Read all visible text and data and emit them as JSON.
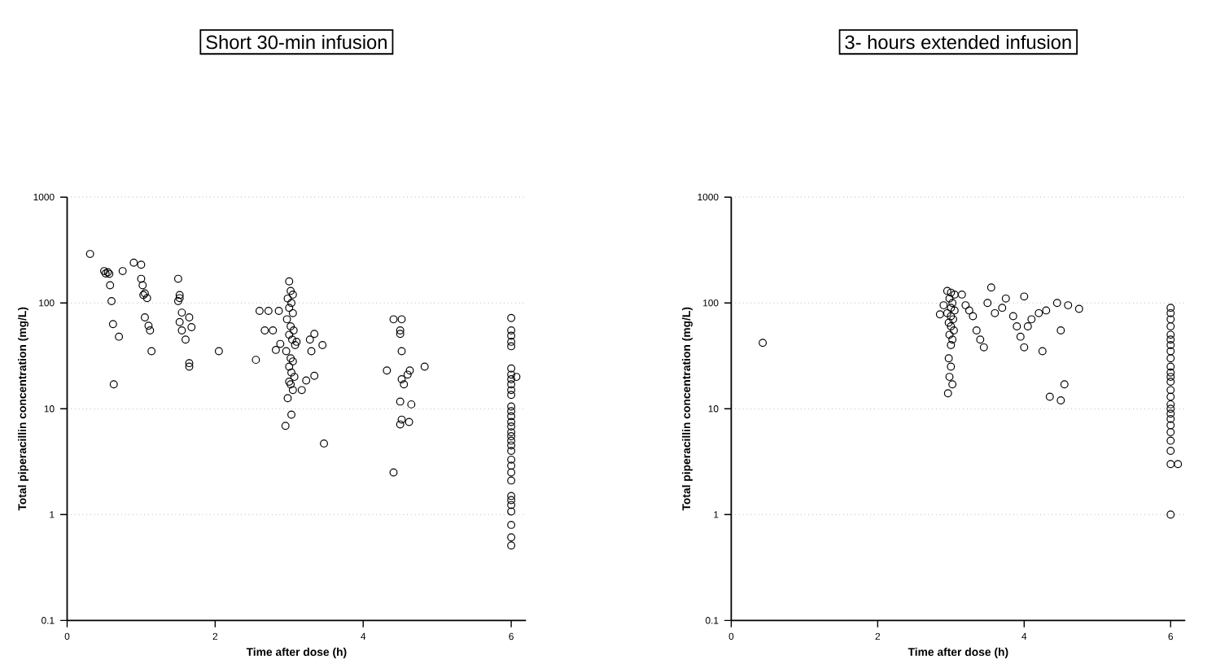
{
  "chart_data": [
    {
      "type": "scatter",
      "title": "Short 30-min infusion",
      "xlabel": "Time after dose (h)",
      "ylabel": "Total piperacillin concentration (mg/L)",
      "log": "y",
      "grid": "y",
      "marker": "circle",
      "color": "#000000",
      "xlim": [
        0,
        6.2
      ],
      "ylim": [
        0.1,
        1000
      ],
      "xticks": [
        0,
        2,
        4,
        6
      ],
      "yticks": [
        0.1,
        1,
        10,
        100,
        1000
      ],
      "x": [
        0.31,
        0.5,
        0.52,
        0.55,
        0.57,
        0.58,
        0.6,
        0.62,
        0.7,
        0.63,
        0.75,
        0.9,
        1.0,
        1.0,
        1.02,
        1.05,
        1.03,
        1.08,
        1.05,
        1.1,
        1.12,
        1.14,
        1.5,
        1.52,
        1.52,
        1.5,
        1.55,
        1.65,
        1.52,
        1.68,
        1.55,
        1.6,
        1.65,
        1.65,
        2.05,
        2.55,
        2.6,
        2.72,
        2.67,
        2.78,
        2.86,
        2.82,
        2.88,
        3.0,
        3.02,
        3.05,
        2.98,
        3.03,
        3.0,
        3.05,
        2.97,
        3.02,
        3.06,
        3.0,
        3.04,
        3.08,
        2.96,
        3.02,
        3.05,
        3.0,
        3.03,
        3.07,
        3.0,
        3.02,
        3.05,
        2.98,
        3.03,
        2.95,
        3.1,
        3.23,
        3.17,
        3.3,
        3.34,
        3.28,
        3.34,
        3.45,
        3.47,
        4.41,
        4.52,
        4.5,
        4.5,
        4.52,
        4.32,
        4.52,
        4.55,
        4.63,
        4.6,
        4.83,
        4.5,
        4.65,
        4.52,
        4.5,
        4.62,
        4.41,
        6,
        6,
        6,
        6,
        6,
        6,
        6,
        6,
        6,
        6,
        6,
        6,
        6,
        6,
        6,
        6,
        6,
        6,
        6,
        6,
        6,
        6,
        6,
        6,
        6,
        6,
        6,
        6,
        6,
        6,
        6,
        6,
        6.07
      ],
      "values": [
        290,
        200,
        190,
        195,
        188,
        147,
        104,
        63,
        48,
        17,
        200,
        240,
        230,
        169,
        147,
        123,
        119,
        111,
        73,
        61,
        55,
        35,
        169,
        119,
        111,
        104,
        81,
        73,
        66,
        59,
        55,
        45,
        27,
        25,
        35,
        29,
        84,
        84,
        55,
        55,
        84,
        36,
        41,
        160,
        130,
        120,
        110,
        100,
        90,
        80,
        70,
        60,
        55,
        50,
        45,
        40,
        35,
        30,
        28,
        25,
        22,
        20,
        18,
        17,
        15,
        12.6,
        8.8,
        6.9,
        43,
        18.5,
        15,
        35,
        51,
        45,
        20.5,
        40,
        4.7,
        70,
        70,
        55,
        51,
        35,
        23,
        19,
        17,
        23,
        21,
        25,
        11.7,
        11,
        7.9,
        7.1,
        7.5,
        2.5,
        72,
        55,
        49,
        43,
        39,
        24,
        21,
        19,
        17,
        15,
        13.5,
        10.5,
        9.5,
        8.5,
        7.5,
        6.8,
        6,
        5.5,
        5,
        4.5,
        4,
        3.3,
        2.9,
        2.5,
        2.1,
        1.5,
        1.37,
        1.23,
        1.07,
        0.8,
        0.61,
        0.51,
        20
      ]
    },
    {
      "type": "scatter",
      "title": "3- hours extended infusion",
      "xlabel": "Time after dose (h)",
      "ylabel": "Total piperacillin concentration (mg/L)",
      "log": "y",
      "grid": "y",
      "marker": "circle",
      "color": "#000000",
      "xlim": [
        0,
        6.2
      ],
      "ylim": [
        0.1,
        1000
      ],
      "xticks": [
        0,
        2,
        4,
        6
      ],
      "yticks": [
        0.1,
        1,
        10,
        100,
        1000
      ],
      "x": [
        0.43,
        2.95,
        3.0,
        3.05,
        2.98,
        3.02,
        2.9,
        3.0,
        3.05,
        2.95,
        3.0,
        3.03,
        2.97,
        3.0,
        3.04,
        2.98,
        3.02,
        3.0,
        2.97,
        3.0,
        2.98,
        3.02,
        2.96,
        2.85,
        3.15,
        3.2,
        3.25,
        3.3,
        3.35,
        3.4,
        3.45,
        3.5,
        3.55,
        3.6,
        3.7,
        3.75,
        3.85,
        3.9,
        3.95,
        4.0,
        4.0,
        4.05,
        4.1,
        4.2,
        4.25,
        4.3,
        4.35,
        4.45,
        4.5,
        4.55,
        4.5,
        4.6,
        4.75,
        6,
        6,
        6,
        6,
        6,
        6,
        6,
        6,
        6,
        6,
        6,
        6,
        6,
        6,
        6,
        6,
        6,
        6,
        6,
        6,
        6,
        6,
        6,
        6,
        6,
        6.1
      ],
      "values": [
        42,
        130,
        125,
        120,
        110,
        100,
        95,
        90,
        85,
        80,
        75,
        70,
        65,
        60,
        55,
        50,
        45,
        40,
        30,
        25,
        20,
        17,
        14,
        78,
        120,
        95,
        85,
        75,
        55,
        45,
        38,
        100,
        140,
        80,
        90,
        110,
        75,
        60,
        48,
        115,
        38,
        60,
        70,
        80,
        35,
        85,
        13,
        100,
        12,
        17,
        55,
        95,
        88,
        90,
        80,
        70,
        60,
        50,
        45,
        40,
        35,
        30,
        25,
        22,
        20,
        18,
        15,
        13,
        11,
        10,
        9,
        8,
        7,
        6,
        5,
        4,
        3,
        1,
        3
      ]
    }
  ]
}
